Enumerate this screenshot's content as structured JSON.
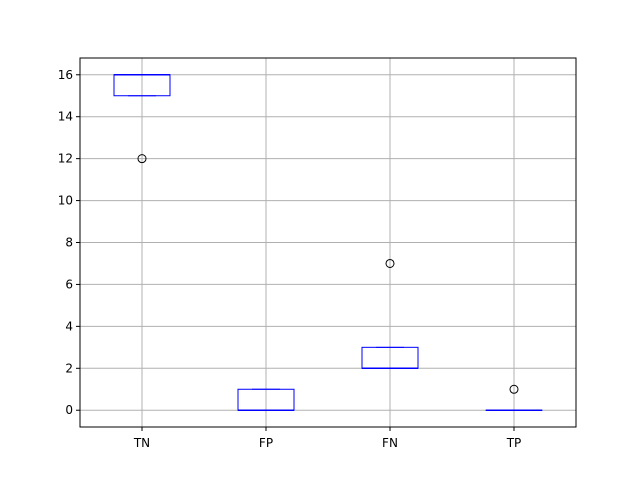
{
  "chart_data": {
    "type": "box",
    "title": "",
    "xlabel": "",
    "ylabel": "",
    "categories": [
      "TN",
      "FP",
      "FN",
      "TP"
    ],
    "ylim": [
      -0.8,
      16.8
    ],
    "yticks": [
      0,
      2,
      4,
      6,
      8,
      10,
      12,
      14,
      16
    ],
    "grid": true,
    "legend": "none",
    "boxes": [
      {
        "name": "TN",
        "q1": 15,
        "median": 16,
        "q3": 16,
        "whisker_low": 15,
        "whisker_high": 16,
        "outliers": [
          12
        ]
      },
      {
        "name": "FP",
        "q1": 0,
        "median": 0,
        "q3": 1,
        "whisker_low": 0,
        "whisker_high": 1,
        "outliers": []
      },
      {
        "name": "FN",
        "q1": 2,
        "median": 2,
        "q3": 3,
        "whisker_low": 2,
        "whisker_high": 3,
        "outliers": [
          7
        ]
      },
      {
        "name": "TP",
        "q1": 0,
        "median": 0,
        "q3": 0,
        "whisker_low": 0,
        "whisker_high": 0,
        "outliers": [
          1
        ]
      }
    ],
    "colors": {
      "box": "#0000ff",
      "median": "#0000ff",
      "grid": "#b0b0b0",
      "outlier": "#000000"
    }
  }
}
